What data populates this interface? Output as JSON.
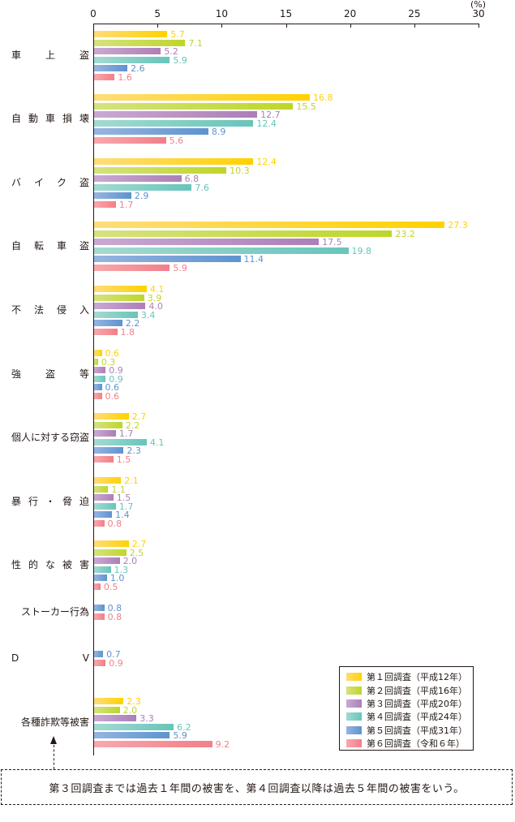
{
  "chart_data": {
    "type": "bar",
    "orientation": "horizontal",
    "title": "",
    "xlabel": "",
    "unit_label": "(%)",
    "xlim": [
      0,
      30
    ],
    "xticks": [
      0,
      5,
      10,
      15,
      20,
      25,
      30
    ],
    "grid": false,
    "legend_position": "bottom-right",
    "categories": [
      "車　上　盗",
      "自動車損壊",
      "バイク盗",
      "自転車盗",
      "不法侵入",
      "強　盗　等",
      "個人に対する窃盗",
      "暴行・脅迫",
      "性的な被害",
      "ストーカー行為",
      "ＤＶ",
      "各種詐欺等被害"
    ],
    "category_display": [
      [
        "車",
        "上",
        "盗"
      ],
      [
        "自",
        "動",
        "車",
        "損",
        "壊"
      ],
      [
        "バ",
        "イ",
        "ク",
        "盗"
      ],
      [
        "自",
        "転",
        "車",
        "盗"
      ],
      [
        "不",
        "法",
        "侵",
        "入"
      ],
      [
        "強",
        "盗",
        "等"
      ],
      [
        "個人に対する窃盗"
      ],
      [
        "暴",
        "行",
        "・",
        "脅",
        "迫"
      ],
      [
        "性",
        "的",
        "な",
        "被",
        "害"
      ],
      [
        "ストーカー行為"
      ],
      [
        "D",
        "V"
      ],
      [
        "各種詐欺等被害"
      ]
    ],
    "series": [
      {
        "name": "第１回調査（平成12年）",
        "color": "#FFD200",
        "light": "#FFDC7A",
        "values": [
          5.7,
          16.8,
          12.4,
          27.3,
          4.1,
          0.6,
          2.7,
          2.1,
          2.7,
          null,
          null,
          2.3
        ]
      },
      {
        "name": "第２回調査（平成16年）",
        "color": "#BED62A",
        "light": "#D6E27E",
        "values": [
          7.1,
          15.5,
          10.3,
          23.2,
          3.9,
          0.3,
          2.2,
          1.1,
          2.5,
          null,
          null,
          2.0
        ]
      },
      {
        "name": "第３回調査（平成20年）",
        "color": "#AC7FB8",
        "light": "#C9A9D3",
        "values": [
          5.2,
          12.7,
          6.8,
          17.5,
          4.0,
          0.9,
          1.7,
          1.5,
          2.0,
          null,
          null,
          3.3
        ]
      },
      {
        "name": "第４回調査（平成24年）",
        "color": "#67C5BA",
        "light": "#A3DAD3",
        "values": [
          5.9,
          12.4,
          7.6,
          19.8,
          3.4,
          0.9,
          4.1,
          1.7,
          1.3,
          null,
          null,
          6.2
        ]
      },
      {
        "name": "第５回調査（平成31年）",
        "color": "#5E93CF",
        "light": "#97B5E0",
        "values": [
          2.6,
          8.9,
          2.9,
          11.4,
          2.2,
          0.6,
          2.3,
          1.4,
          1.0,
          0.8,
          0.7,
          5.9
        ]
      },
      {
        "name": "第６回調査（令和６年）",
        "color": "#F27F89",
        "light": "#F8A8AE",
        "values": [
          1.6,
          5.6,
          1.7,
          5.9,
          1.8,
          0.6,
          1.5,
          0.8,
          0.5,
          0.8,
          0.9,
          9.2
        ]
      }
    ]
  },
  "legend": {
    "items": [
      "第１回調査（平成12年）",
      "第２回調査（平成16年）",
      "第３回調査（平成20年）",
      "第４回調査（平成24年）",
      "第５回調査（平成31年）",
      "第６回調査（令和６年）"
    ]
  },
  "note": {
    "text": "第３回調査までは過去１年間の被害を、第４回調査以降は過去５年間の被害をいう。"
  }
}
